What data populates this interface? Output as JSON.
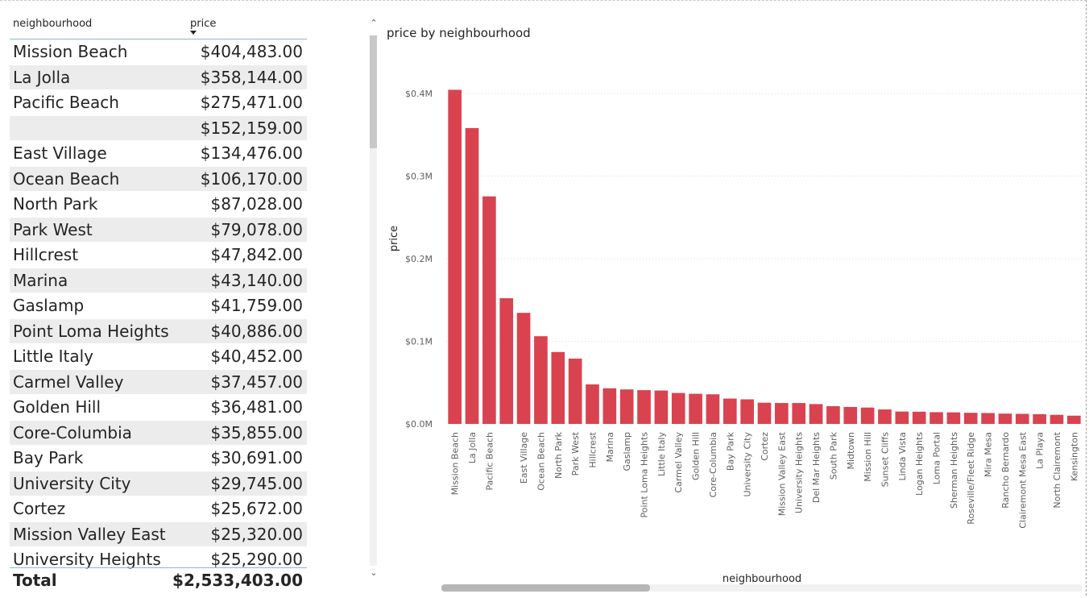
{
  "table": {
    "columns": [
      "neighbourhood",
      "price"
    ],
    "rows": [
      {
        "neighbourhood": "Mission Beach",
        "price": "$404,483.00"
      },
      {
        "neighbourhood": "La Jolla",
        "price": "$358,144.00"
      },
      {
        "neighbourhood": "Pacific Beach",
        "price": "$275,471.00"
      },
      {
        "neighbourhood": "",
        "price": "$152,159.00"
      },
      {
        "neighbourhood": "East Village",
        "price": "$134,476.00"
      },
      {
        "neighbourhood": "Ocean Beach",
        "price": "$106,170.00"
      },
      {
        "neighbourhood": "North Park",
        "price": "$87,028.00"
      },
      {
        "neighbourhood": "Park West",
        "price": "$79,078.00"
      },
      {
        "neighbourhood": "Hillcrest",
        "price": "$47,842.00"
      },
      {
        "neighbourhood": "Marina",
        "price": "$43,140.00"
      },
      {
        "neighbourhood": "Gaslamp",
        "price": "$41,759.00"
      },
      {
        "neighbourhood": "Point Loma Heights",
        "price": "$40,886.00"
      },
      {
        "neighbourhood": "Little Italy",
        "price": "$40,452.00"
      },
      {
        "neighbourhood": "Carmel Valley",
        "price": "$37,457.00"
      },
      {
        "neighbourhood": "Golden Hill",
        "price": "$36,481.00"
      },
      {
        "neighbourhood": "Core-Columbia",
        "price": "$35,855.00"
      },
      {
        "neighbourhood": "Bay Park",
        "price": "$30,691.00"
      },
      {
        "neighbourhood": "University City",
        "price": "$29,745.00"
      },
      {
        "neighbourhood": "Cortez",
        "price": "$25,672.00"
      },
      {
        "neighbourhood": "Mission Valley East",
        "price": "$25,320.00"
      },
      {
        "neighbourhood": "University Heights",
        "price": "$25,290.00"
      }
    ],
    "total_label": "Total",
    "total_value": "$2,533,403.00"
  },
  "scrollbar_icons": {
    "up": "chevron-up-icon",
    "down": "chevron-down-icon"
  },
  "chart_data": {
    "type": "bar",
    "title": "price by neighbourhood",
    "xlabel": "neighbourhood",
    "ylabel": "price",
    "ylim": [
      0,
      400000
    ],
    "yticks": [
      "$0.0M",
      "$0.1M",
      "$0.2M",
      "$0.3M",
      "$0.4M"
    ],
    "grid": true,
    "bar_color": "#d9434f",
    "categories": [
      "Mission Beach",
      "La Jolla",
      "Pacific Beach",
      "",
      "East Village",
      "Ocean Beach",
      "North Park",
      "Park West",
      "Hillcrest",
      "Marina",
      "Gaslamp",
      "Point Loma Heights",
      "Little Italy",
      "Carmel Valley",
      "Golden Hill",
      "Core-Columbia",
      "Bay Park",
      "University City",
      "Cortez",
      "Mission Valley East",
      "University Heights",
      "Del Mar Heights",
      "South Park",
      "Midtown",
      "Mission Hill",
      "Sunset Cliffs",
      "Linda Vista",
      "Logan Heights",
      "Loma Portal",
      "Sherman Heights",
      "Roseville/Fleet Ridge",
      "Mira Mesa",
      "Rancho Bernardo",
      "Clairemont Mesa East",
      "La Playa",
      "North Clairemont",
      "Kensington"
    ],
    "values": [
      404483,
      358144,
      275471,
      152159,
      134476,
      106170,
      87028,
      79078,
      47842,
      43140,
      41759,
      40886,
      40452,
      37457,
      36481,
      35855,
      30691,
      29745,
      25672,
      25320,
      25290,
      24000,
      21500,
      20500,
      19800,
      17500,
      15000,
      14800,
      14200,
      14000,
      13500,
      13200,
      12500,
      12200,
      11800,
      11000,
      10000
    ]
  }
}
